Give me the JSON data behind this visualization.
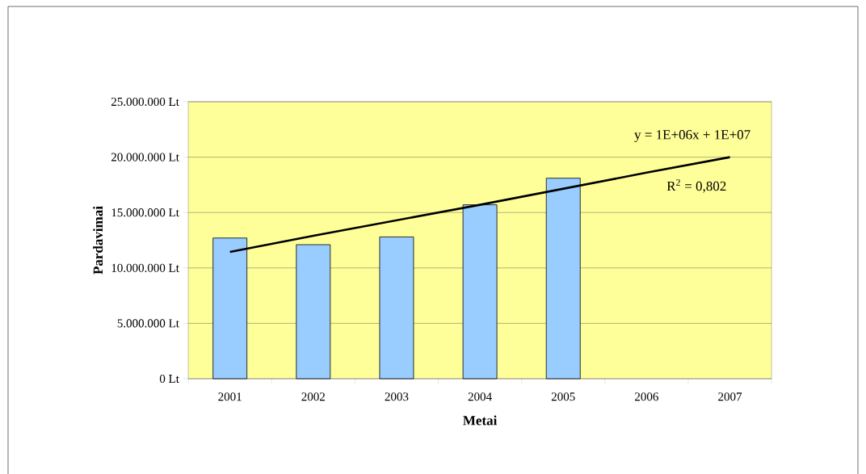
{
  "chart_data": {
    "type": "bar",
    "xlabel": "Metai",
    "ylabel": "Pardavimai",
    "categories": [
      "2001",
      "2002",
      "2003",
      "2004",
      "2005",
      "2006",
      "2007"
    ],
    "series": [
      {
        "color": "#99ccff",
        "values": [
          12700000,
          12100000,
          12800000,
          15700000,
          18100000,
          null,
          null
        ]
      },
      {
        "type": "line",
        "color": "#000000",
        "values": [
          11450000,
          12900000,
          14300000,
          15700000,
          17150000,
          18600000,
          20000000
        ]
      }
    ],
    "ylim": [
      0,
      25000000
    ],
    "yticks": [
      {
        "value": 0,
        "label": "0 Lt"
      },
      {
        "value": 5000000,
        "label": "5.000.000 Lt"
      },
      {
        "value": 10000000,
        "label": "10.000.000 Lt"
      },
      {
        "value": 15000000,
        "label": "15.000.000 Lt"
      },
      {
        "value": 20000000,
        "label": "20.000.000 Lt"
      },
      {
        "value": 25000000,
        "label": "25.000.000 Lt"
      }
    ],
    "grid": "y",
    "annotations": [
      "y = 1E+06x + 1E+07",
      "R$^{2}$ = 0,802"
    ]
  }
}
